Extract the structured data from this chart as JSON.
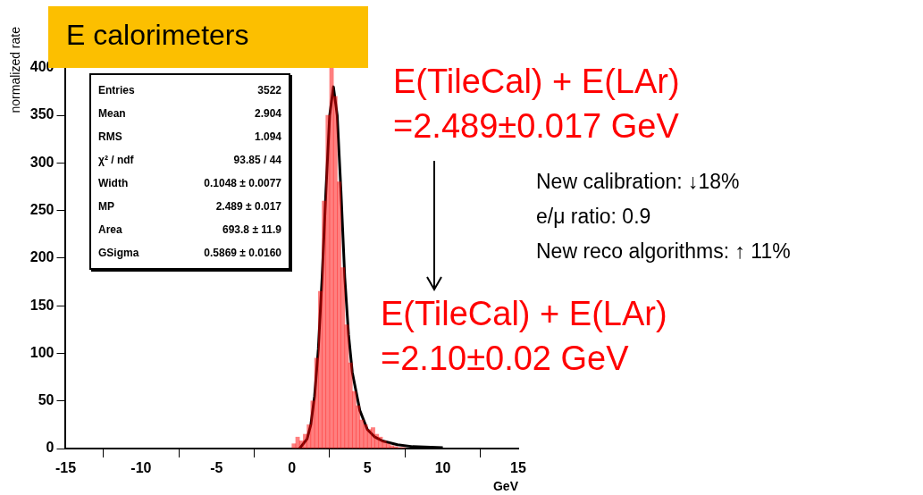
{
  "chart_data": {
    "type": "histogram",
    "title": "E calorimeters",
    "xlabel": "GeV",
    "ylabel": "normalized rate",
    "xlim": [
      -15,
      15
    ],
    "xticks": [
      -15,
      -10,
      -5,
      0,
      5,
      10,
      15
    ],
    "ylim": [
      0,
      443
    ],
    "yticks": [
      0,
      50,
      100,
      150,
      200,
      250,
      300,
      350,
      400
    ],
    "grid": false,
    "series": [
      {
        "type": "histogram",
        "color": "#ff0000",
        "bins": [
          0,
          0.25,
          0.5,
          0.75,
          1,
          1.25,
          1.5,
          1.75,
          2,
          2.25,
          2.5,
          2.75,
          3,
          3.25,
          3.5,
          3.75,
          4,
          4.25,
          4.5,
          4.75,
          5,
          5.25,
          5.5,
          5.75,
          6,
          6.25,
          6.5,
          6.75,
          7,
          7.25,
          7.5
        ],
        "values": [
          5,
          12,
          8,
          15,
          25,
          50,
          95,
          165,
          260,
          350,
          400,
          370,
          280,
          190,
          130,
          90,
          60,
          45,
          30,
          25,
          20,
          22,
          15,
          12,
          8,
          5,
          3,
          2,
          1,
          1
        ]
      },
      {
        "type": "line",
        "color": "#000000",
        "x": [
          0.5,
          1,
          1.25,
          1.5,
          1.75,
          2,
          2.25,
          2.5,
          2.75,
          3,
          3.25,
          3.5,
          3.75,
          4,
          4.5,
          5,
          5.5,
          6,
          7,
          8,
          10
        ],
        "values": [
          0,
          10,
          25,
          55,
          105,
          180,
          270,
          350,
          380,
          350,
          270,
          180,
          120,
          80,
          40,
          20,
          12,
          8,
          4,
          2,
          1
        ]
      }
    ],
    "annotations": [
      "Entries",
      "3522",
      "Mean",
      "2.904",
      "RMS",
      "1.094",
      "χ² / ndf",
      "93.85 / 44",
      "Width",
      "0.1048 ± 0.0077",
      "MP",
      "2.489 ± 0.017",
      "Area",
      "693.8 ± 11.9",
      "GSigma",
      "0.5869 ± 0.0160",
      "E(TileCal) + E(LAr)",
      "=2.489±0.017 GeV",
      "E(TileCal) + E(LAr)",
      "=2.10±0.02 GeV",
      "New calibration: ↓18%",
      "e/μ ratio: 0.9",
      "New reco algorithms: ↑ 11%"
    ]
  }
}
